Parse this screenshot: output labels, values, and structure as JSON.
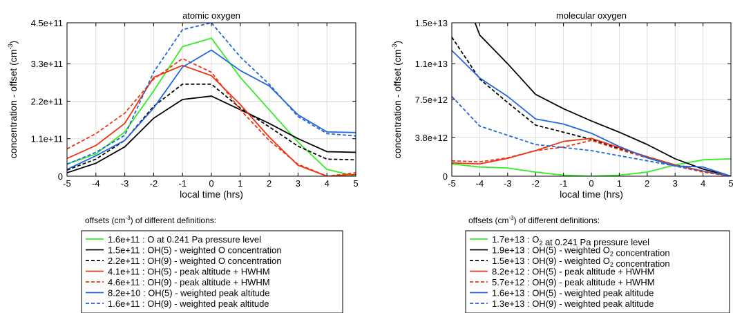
{
  "chart_data": [
    {
      "type": "line",
      "title": "atomic oxygen",
      "xlabel": "local time (hrs)",
      "ylabel": "concentration - offset (cm-3)",
      "ylabel_main": "concentration - offset (cm",
      "ylabel_sup": "-3",
      "ylabel_end": ")",
      "x": [
        -5,
        -4,
        -3,
        -2,
        -1,
        0,
        1,
        2,
        3,
        4,
        5
      ],
      "x_ticks": [
        "-5",
        "-4",
        "-3",
        "-2",
        "-1",
        "0",
        "1",
        "2",
        "3",
        "4",
        "5"
      ],
      "xlim": [
        -5,
        5
      ],
      "ylim": [
        0,
        450000000000.0
      ],
      "y_ticks": [
        0,
        110000000000.0,
        220000000000.0,
        330000000000.0,
        450000000000.0
      ],
      "y_tick_labels": [
        "0",
        "1.1e+11",
        "2.2e+11",
        "3.3e+11",
        "4.5e+11"
      ],
      "grid": true,
      "series": [
        {
          "values": [
            36000000000.0,
            65000000000.0,
            130000000000.0,
            250000000000.0,
            380000000000.0,
            405000000000.0,
            290000000000.0,
            195000000000.0,
            100000000000.0,
            20000000000.0,
            0
          ],
          "color": "#33ee22",
          "dash": "solid"
        },
        {
          "values": [
            10000000000.0,
            38000000000.0,
            86000000000.0,
            170000000000.0,
            225000000000.0,
            235000000000.0,
            195000000000.0,
            155000000000.0,
            110000000000.0,
            72000000000.0,
            70000000000.0
          ],
          "color": "#000000",
          "dash": "solid"
        },
        {
          "values": [
            18000000000.0,
            50000000000.0,
            105000000000.0,
            205000000000.0,
            270000000000.0,
            270000000000.0,
            200000000000.0,
            145000000000.0,
            88000000000.0,
            50000000000.0,
            48000000000.0
          ],
          "color": "#000000",
          "dash": "dashed"
        },
        {
          "values": [
            52000000000.0,
            90000000000.0,
            155000000000.0,
            290000000000.0,
            325000000000.0,
            295000000000.0,
            210000000000.0,
            115000000000.0,
            32000000000.0,
            0,
            5000000000.0
          ],
          "color": "#ee3311",
          "dash": "solid"
        },
        {
          "values": [
            80000000000.0,
            125000000000.0,
            185000000000.0,
            285000000000.0,
            345000000000.0,
            305000000000.0,
            195000000000.0,
            105000000000.0,
            35000000000.0,
            0,
            10000000000.0
          ],
          "color": "#ee3311",
          "dash": "dashed"
        },
        {
          "values": [
            20000000000.0,
            60000000000.0,
            105000000000.0,
            200000000000.0,
            320000000000.0,
            370000000000.0,
            310000000000.0,
            265000000000.0,
            180000000000.0,
            130000000000.0,
            128000000000.0
          ],
          "color": "#2266dd",
          "dash": "solid"
        },
        {
          "values": [
            35000000000.0,
            70000000000.0,
            120000000000.0,
            305000000000.0,
            430000000000.0,
            450000000000.0,
            350000000000.0,
            270000000000.0,
            175000000000.0,
            125000000000.0,
            118000000000.0
          ],
          "color": "#2266dd",
          "dash": "dashed"
        }
      ],
      "legend_title": "offsets (cm-3) of different definitions:",
      "legend_title_main": "offsets (cm",
      "legend_title_sup": "-3",
      "legend_title_end": ") of different definitions:",
      "legend": [
        "1.6e+11 : O at 0.241 Pa pressure level",
        "1.5e+11 : OH(5) - weighted O concentration",
        "2.2e+11 : OH(9) - weighted O concentration",
        "4.1e+11 : OH(5) - peak altitude + HWHM",
        "4.6e+11 : OH(9) - peak altitude + HWHM",
        "8.2e+10 : OH(5) - weighted peak altitude",
        "1.6e+11 : OH(9) - weighted peak altitude"
      ]
    },
    {
      "type": "line",
      "title": "molecular oxygen",
      "xlabel": "local time (hrs)",
      "ylabel": "concentration - offset (cm-3)",
      "ylabel_main": "concentration - offset (cm",
      "ylabel_sup": "-3",
      "ylabel_end": ")",
      "x": [
        -5,
        -4,
        -3,
        -2,
        -1,
        0,
        1,
        2,
        3,
        4,
        5
      ],
      "x_ticks": [
        "-5",
        "-4",
        "-3",
        "-2",
        "-1",
        "0",
        "1",
        "2",
        "3",
        "4",
        "5"
      ],
      "xlim": [
        -5,
        5
      ],
      "ylim": [
        0,
        15000000000000.0
      ],
      "y_ticks": [
        0,
        3800000000000.0,
        7500000000000.0,
        11000000000000.0,
        15000000000000.0
      ],
      "y_tick_labels": [
        "0",
        "3.8e+12",
        "7.5e+12",
        "1.1e+13",
        "1.5e+13"
      ],
      "grid": true,
      "series": [
        {
          "values": [
            1200000000000.0,
            900000000000.0,
            800000000000.0,
            400000000000.0,
            100000000000.0,
            0,
            100000000000.0,
            400000000000.0,
            1100000000000.0,
            1600000000000.0,
            1700000000000.0
          ],
          "color": "#33ee22",
          "dash": "solid"
        },
        {
          "values": [
            21000000000000.0,
            13800000000000.0,
            11000000000000.0,
            8000000000000.0,
            6600000000000.0,
            5400000000000.0,
            4300000000000.0,
            3100000000000.0,
            1700000000000.0,
            700000000000.0,
            0
          ],
          "color": "#000000",
          "dash": "solid"
        },
        {
          "values": [
            13600000000000.0,
            9500000000000.0,
            7200000000000.0,
            5000000000000.0,
            4300000000000.0,
            3600000000000.0,
            2700000000000.0,
            1900000000000.0,
            1100000000000.0,
            500000000000.0,
            0
          ],
          "color": "#000000",
          "dash": "dashed"
        },
        {
          "values": [
            1300000000000.0,
            1200000000000.0,
            1750000000000.0,
            2500000000000.0,
            3400000000000.0,
            3700000000000.0,
            2800000000000.0,
            1900000000000.0,
            1100000000000.0,
            500000000000.0,
            0
          ],
          "color": "#ee3311",
          "dash": "solid"
        },
        {
          "values": [
            1500000000000.0,
            1400000000000.0,
            1800000000000.0,
            2500000000000.0,
            2850000000000.0,
            3500000000000.0,
            2600000000000.0,
            1800000000000.0,
            1000000000000.0,
            400000000000.0,
            0
          ],
          "color": "#ee3311",
          "dash": "dashed"
        },
        {
          "values": [
            12300000000000.0,
            9600000000000.0,
            7800000000000.0,
            5600000000000.0,
            5100000000000.0,
            4200000000000.0,
            2900000000000.0,
            1800000000000.0,
            1000000000000.0,
            900000000000.0,
            0
          ],
          "color": "#2266dd",
          "dash": "solid"
        },
        {
          "values": [
            7800000000000.0,
            4900000000000.0,
            4000000000000.0,
            3100000000000.0,
            2800000000000.0,
            2500000000000.0,
            2000000000000.0,
            1500000000000.0,
            1000000000000.0,
            500000000000.0,
            0
          ],
          "color": "#2266dd",
          "dash": "dashed"
        }
      ],
      "legend_title": "offsets (cm-3) of different definitions:",
      "legend_title_main": "offsets (cm",
      "legend_title_sup": "-3",
      "legend_title_end": ") of different definitions:",
      "legend": [
        "1.7e+13 : O2 at 0.241 Pa pressure level",
        "1.9e+13 : OH(5) - weighted O2 concentration",
        "1.5e+13 : OH(9) - weighted O2 concentration",
        "8.2e+12 : OH(5) - peak altitude + HWHM",
        "5.7e+12 : OH(9) - peak altitude + HWHM",
        "1.6e+13 : OH(5) - weighted peak altitude",
        "1.3e+13 : OH(9) - weighted peak altitude"
      ]
    }
  ]
}
